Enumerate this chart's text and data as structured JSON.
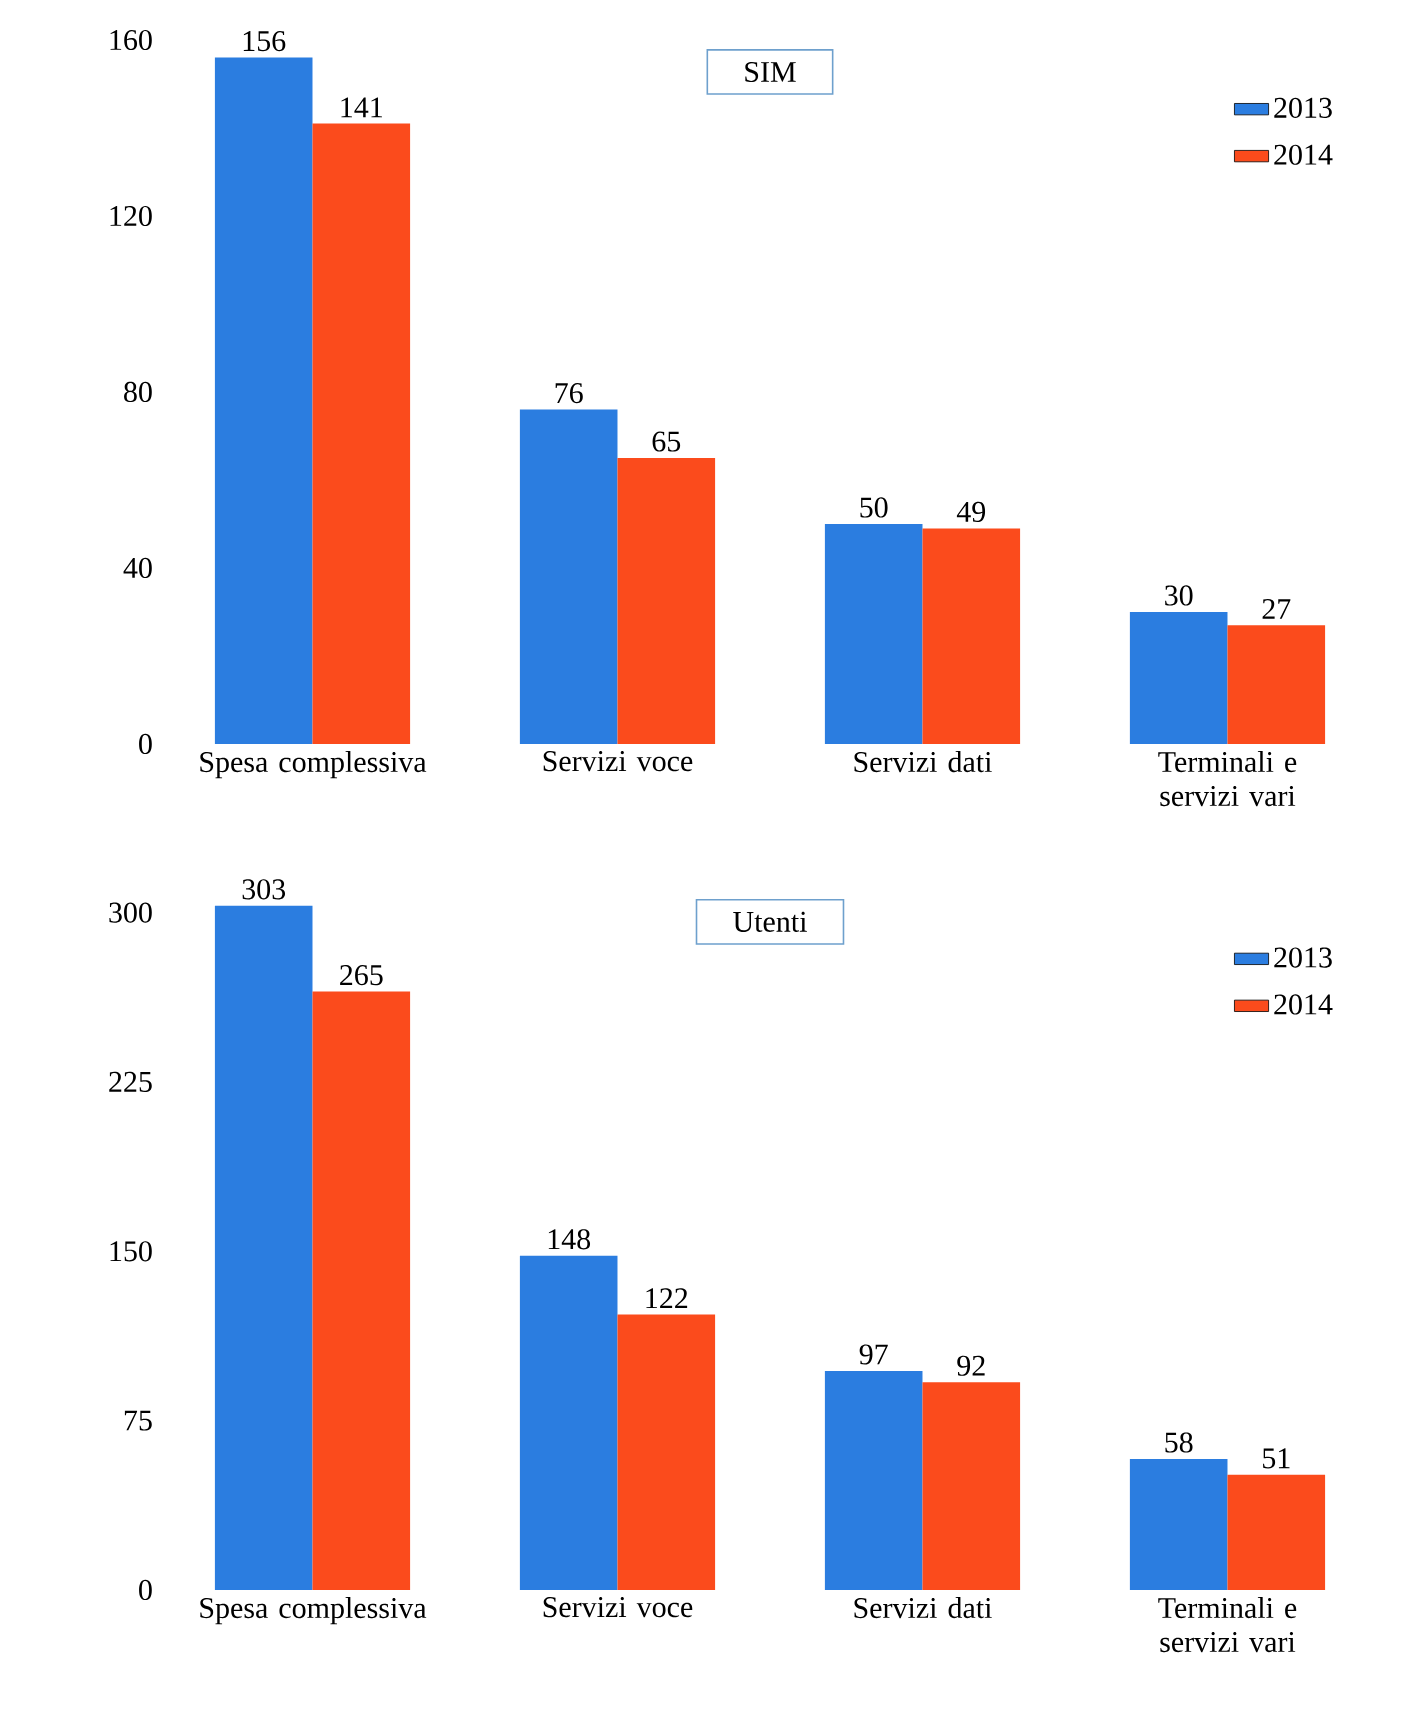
{
  "chart_data": [
    {
      "type": "bar",
      "title": "SIM",
      "categories": [
        "Spesa complessiva",
        "Servizi voce",
        "Servizi dati",
        "Terminali e servizi vari"
      ],
      "series": [
        {
          "name": "2013",
          "color": "#2b7de0",
          "values": [
            156,
            76,
            50,
            30
          ]
        },
        {
          "name": "2014",
          "color": "#fb4b1c",
          "values": [
            141,
            65,
            49,
            27
          ]
        }
      ],
      "ylim": [
        0,
        160
      ],
      "yticks": [
        0,
        40,
        80,
        120,
        160
      ],
      "data_labels": true,
      "legend": "top right",
      "grid": false
    },
    {
      "type": "bar",
      "title": "Utenti",
      "categories": [
        "Spesa complessiva",
        "Servizi voce",
        "Servizi dati",
        "Terminali e servizi vari"
      ],
      "series": [
        {
          "name": "2013",
          "color": "#2b7de0",
          "values": [
            303,
            148,
            97,
            58
          ]
        },
        {
          "name": "2014",
          "color": "#fb4b1c",
          "values": [
            265,
            122,
            92,
            51
          ]
        }
      ],
      "ylim": [
        0,
        310
      ],
      "yticks": [
        0,
        75,
        150,
        225,
        300
      ],
      "data_labels": true,
      "legend": "top right",
      "grid": false
    }
  ]
}
